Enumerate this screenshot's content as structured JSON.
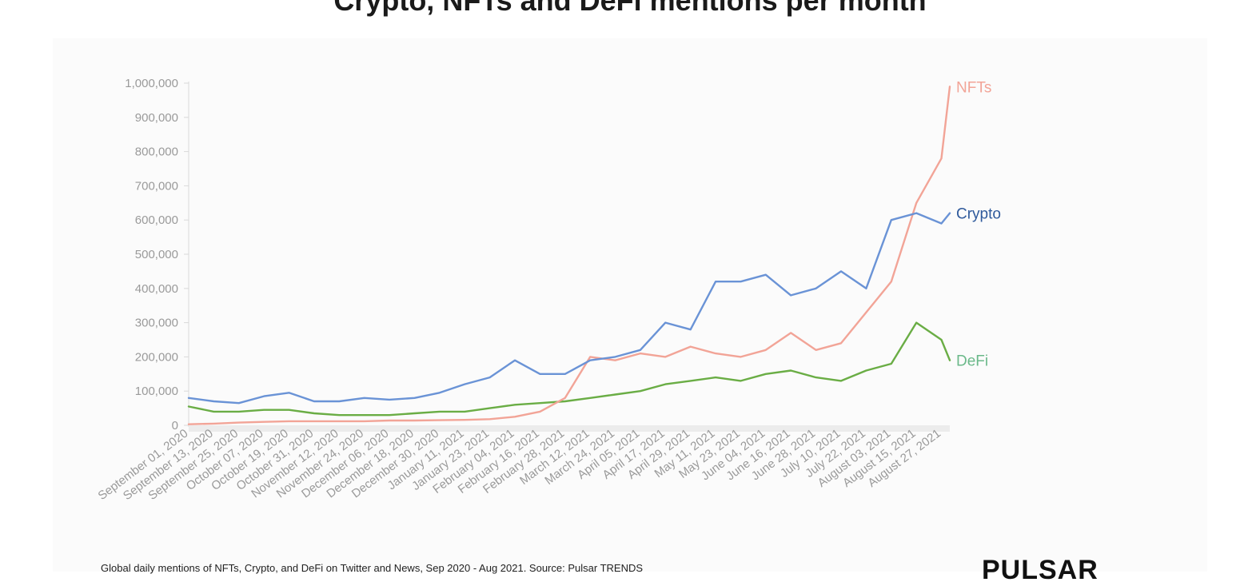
{
  "page": {
    "title": "Crypto, NFTs and DeFi mentions per month",
    "caption": "Global daily mentions of NFTs, Crypto, and DeFi on Twitter and News, Sep 2020 - Aug 2021. Source: Pulsar TRENDS",
    "brand": "PULSAR"
  },
  "colors": {
    "nfts": "#f2a497",
    "crypto": "#6a93d6",
    "crypto_label": "#2f5a9c",
    "defi": "#6aad45",
    "defi_label": "#6bb98a",
    "axis_text": "#9a9a9a",
    "axis_line": "#d9d9d9"
  },
  "chart_data": {
    "type": "line",
    "title": "",
    "xlabel": "",
    "ylabel": "",
    "ylim": [
      0,
      1000000
    ],
    "yticks": [
      "0",
      "100,000",
      "200,000",
      "300,000",
      "400,000",
      "500,000",
      "600,000",
      "700,000",
      "800,000",
      "900,000",
      "1,000,000"
    ],
    "x_tick_labels": [
      "September 01, 2020",
      "September 13, 2020",
      "September 25, 2020",
      "October 07, 2020",
      "October 19, 2020",
      "October 31, 2020",
      "November 12, 2020",
      "November 24, 2020",
      "December 06, 2020",
      "December 18, 2020",
      "December 30, 2020",
      "January 11, 2021",
      "January 23, 2021",
      "February 04, 2021",
      "February 16, 2021",
      "February 28, 2021",
      "March 12, 2021",
      "March 24, 2021",
      "April 05, 2021",
      "April 17, 2021",
      "April 29, 2021",
      "May 11, 2021",
      "May 23, 2021",
      "June 04, 2021",
      "June 16, 2021",
      "June 28, 2021",
      "July 10, 2021",
      "July 22, 2021",
      "August 03, 2021",
      "August 15, 2021",
      "August 27, 2021"
    ],
    "x": [
      "2020-09-01",
      "2020-09-13",
      "2020-09-25",
      "2020-10-07",
      "2020-10-19",
      "2020-10-31",
      "2020-11-12",
      "2020-11-24",
      "2020-12-06",
      "2020-12-18",
      "2020-12-30",
      "2021-01-11",
      "2021-01-23",
      "2021-02-04",
      "2021-02-16",
      "2021-02-28",
      "2021-03-12",
      "2021-03-24",
      "2021-04-05",
      "2021-04-17",
      "2021-04-29",
      "2021-05-11",
      "2021-05-23",
      "2021-06-04",
      "2021-06-16",
      "2021-06-28",
      "2021-07-10",
      "2021-07-22",
      "2021-08-03",
      "2021-08-15",
      "2021-08-27",
      "2021-08-31"
    ],
    "series": [
      {
        "name": "Crypto",
        "values": [
          80000,
          70000,
          65000,
          85000,
          95000,
          70000,
          70000,
          80000,
          75000,
          80000,
          95000,
          120000,
          140000,
          190000,
          150000,
          150000,
          190000,
          200000,
          220000,
          300000,
          280000,
          420000,
          420000,
          440000,
          380000,
          400000,
          450000,
          400000,
          600000,
          620000,
          590000,
          620000
        ]
      },
      {
        "name": "NFTs",
        "values": [
          3000,
          5000,
          8000,
          10000,
          12000,
          12000,
          12000,
          12000,
          14000,
          14000,
          15000,
          16000,
          18000,
          25000,
          40000,
          80000,
          200000,
          190000,
          210000,
          200000,
          230000,
          210000,
          200000,
          220000,
          270000,
          220000,
          240000,
          330000,
          420000,
          650000,
          780000,
          990000
        ]
      },
      {
        "name": "DeFi",
        "values": [
          55000,
          40000,
          40000,
          45000,
          45000,
          35000,
          30000,
          30000,
          30000,
          35000,
          40000,
          40000,
          50000,
          60000,
          65000,
          70000,
          80000,
          90000,
          100000,
          120000,
          130000,
          140000,
          130000,
          150000,
          160000,
          140000,
          130000,
          160000,
          180000,
          300000,
          250000,
          190000
        ]
      }
    ],
    "legend": "inline-right",
    "grid": false
  }
}
